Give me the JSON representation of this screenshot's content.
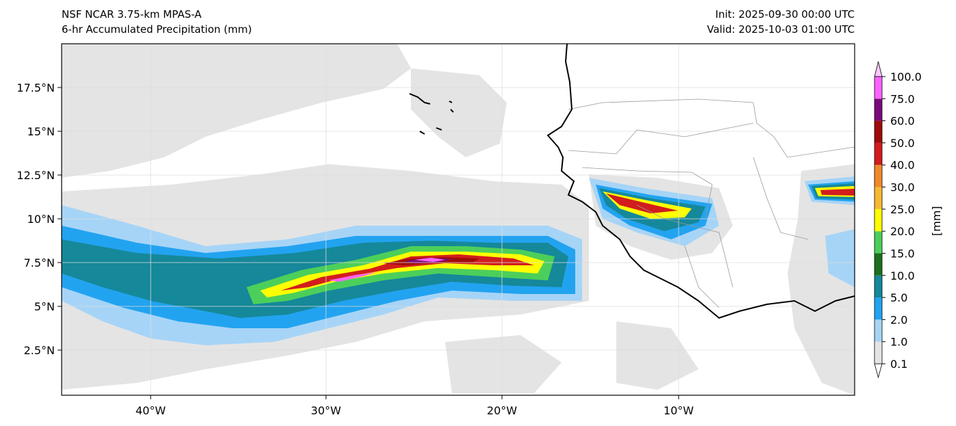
{
  "header": {
    "model_line": "NSF NCAR 3.75-km MPAS-A",
    "field_line": "6-hr Accumulated Precipitation (mm)",
    "init_line": "Init: 2025-09-30 00:00 UTC",
    "valid_line": "Valid: 2025-10-03 01:00 UTC"
  },
  "axes": {
    "lat_ticks": [
      "17.5°N",
      "15°N",
      "12.5°N",
      "10°N",
      "7.5°N",
      "5°N",
      "2.5°N"
    ],
    "lon_ticks": [
      "40°W",
      "30°W",
      "20°W",
      "10°W"
    ]
  },
  "colorbar": {
    "unit": "[mm]",
    "levels": [
      "0.1",
      "1.0",
      "2.0",
      "5.0",
      "10.0",
      "15.0",
      "20.0",
      "25.0",
      "30.0",
      "40.0",
      "50.0",
      "60.0",
      "75.0",
      "100.0"
    ],
    "colors": [
      "#e4e4e4",
      "#a6d4f7",
      "#22a3f0",
      "#15889a",
      "#1c6f1c",
      "#4ccf5a",
      "#ffff00",
      "#f7b932",
      "#ef8a2a",
      "#d21d1d",
      "#a10a0a",
      "#7a0a7a",
      "#ff63ff"
    ]
  }
}
